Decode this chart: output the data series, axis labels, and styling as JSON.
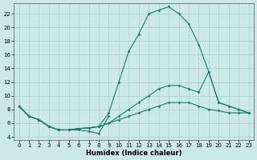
{
  "xlabel": "Humidex (Indice chaleur)",
  "bg_color": "#cce8e8",
  "line_color": "#1a7a6e",
  "xlim": [
    -0.5,
    23.5
  ],
  "ylim": [
    3.5,
    23.5
  ],
  "yticks": [
    4,
    6,
    8,
    10,
    12,
    14,
    16,
    18,
    20,
    22
  ],
  "xticks": [
    0,
    1,
    2,
    3,
    4,
    5,
    6,
    7,
    8,
    9,
    10,
    11,
    12,
    13,
    14,
    15,
    16,
    17,
    18,
    19,
    20,
    21,
    22,
    23
  ],
  "series": [
    {
      "x": [
        0,
        1,
        2,
        3,
        4,
        5,
        6,
        7,
        8,
        9
      ],
      "y": [
        8.5,
        7.0,
        6.5,
        5.5,
        5.0,
        5.0,
        5.0,
        4.8,
        4.5,
        7.0
      ]
    },
    {
      "x": [
        0,
        1,
        2,
        3,
        4,
        5,
        6,
        7,
        8,
        9,
        10,
        11,
        12,
        13,
        14,
        15,
        16,
        17,
        18,
        19,
        20,
        21,
        22,
        23
      ],
      "y": [
        8.5,
        7.0,
        6.5,
        5.5,
        5.0,
        5.0,
        5.2,
        5.3,
        5.5,
        6.0,
        6.5,
        7.0,
        7.5,
        8.0,
        8.5,
        9.0,
        9.0,
        9.0,
        8.5,
        8.0,
        7.8,
        7.5,
        7.5,
        7.5
      ]
    },
    {
      "x": [
        0,
        1,
        2,
        3,
        4,
        5,
        6,
        7,
        8,
        9,
        10,
        11,
        12,
        13,
        14,
        15,
        16,
        17,
        18,
        19,
        20,
        21,
        22,
        23
      ],
      "y": [
        8.5,
        7.0,
        6.5,
        5.5,
        5.0,
        5.0,
        5.2,
        5.3,
        5.5,
        6.0,
        7.0,
        8.0,
        9.0,
        10.0,
        11.0,
        11.5,
        11.5,
        11.0,
        10.5,
        13.5,
        9.0,
        8.5,
        8.0,
        7.5
      ]
    },
    {
      "x": [
        0,
        1,
        2,
        3,
        4,
        5,
        6,
        7,
        8,
        9,
        10,
        11,
        12,
        13,
        14,
        15,
        16,
        17,
        18,
        19,
        20,
        21,
        22,
        23
      ],
      "y": [
        8.5,
        7.0,
        6.5,
        5.5,
        5.0,
        5.0,
        5.2,
        5.3,
        5.5,
        7.5,
        12.0,
        16.5,
        19.0,
        22.0,
        22.5,
        23.0,
        22.0,
        20.5,
        17.5,
        13.5,
        9.0,
        8.5,
        8.0,
        7.5
      ]
    }
  ]
}
